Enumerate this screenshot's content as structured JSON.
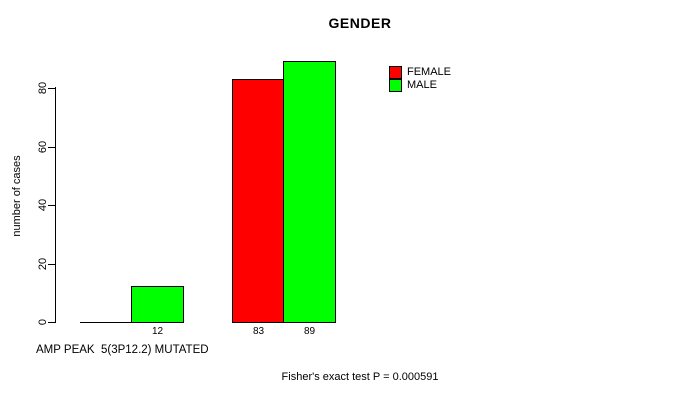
{
  "title": "GENDER",
  "y_axis": {
    "label": "number of cases",
    "ticks": [
      0,
      20,
      40,
      60,
      80
    ]
  },
  "x_axis": {
    "label": "AMP PEAK  5(3P12.2) MUTATED"
  },
  "legend": {
    "items": [
      {
        "label": "FEMALE",
        "color": "#ff0000"
      },
      {
        "label": "MALE",
        "color": "#00ff00"
      }
    ]
  },
  "footer": "Fisher's exact test P = 0.000591",
  "chart_data": {
    "type": "bar",
    "title": "GENDER",
    "xlabel": "AMP PEAK  5(3P12.2) MUTATED",
    "ylabel": "number of cases",
    "categories": [
      "",
      ""
    ],
    "series": [
      {
        "name": "FEMALE",
        "color": "#ff0000",
        "values": [
          0,
          83
        ]
      },
      {
        "name": "MALE",
        "color": "#00ff00",
        "values": [
          12,
          89
        ]
      }
    ],
    "bar_value_labels": [
      [
        "",
        "12"
      ],
      [
        "83",
        "89"
      ]
    ],
    "ylim": [
      0,
      80
    ],
    "yticks": [
      0,
      20,
      40,
      60,
      80
    ],
    "grid": false,
    "legend_position": "top-right-inside",
    "annotation": "Fisher's exact test P = 0.000591"
  }
}
